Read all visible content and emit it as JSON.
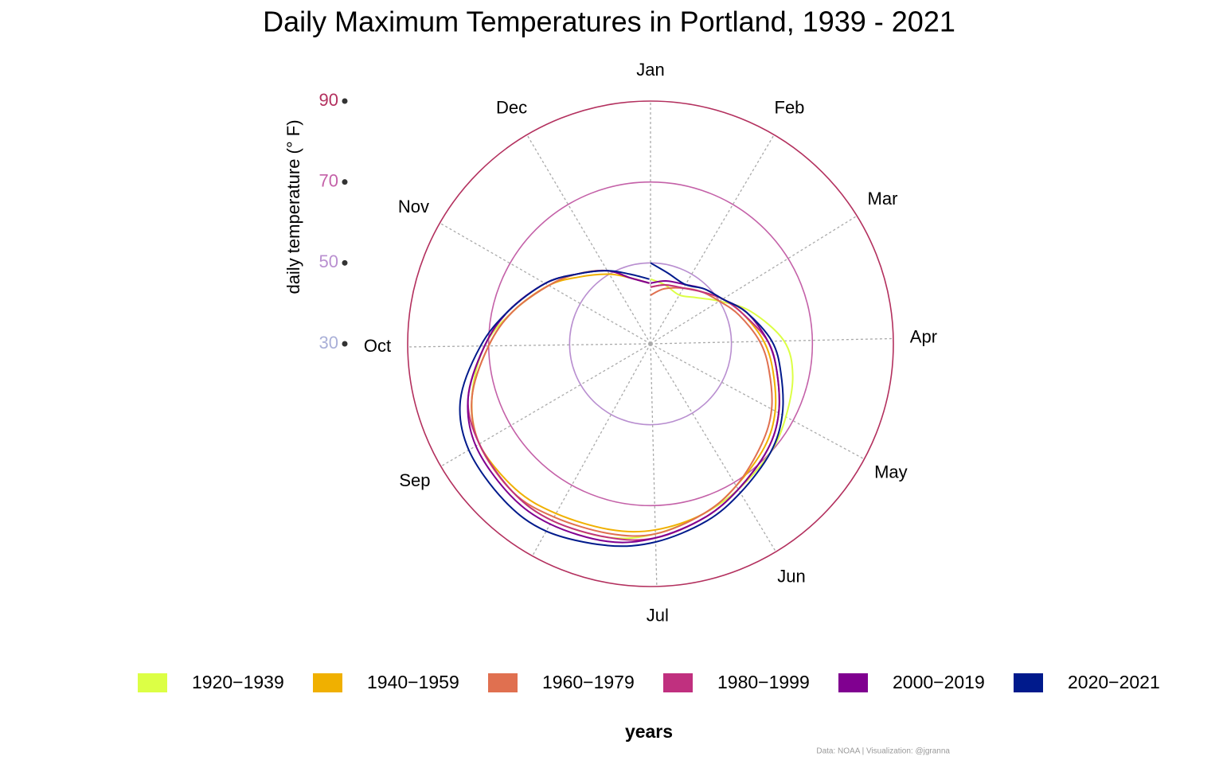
{
  "chart_data": {
    "type": "polar-line",
    "title": "Daily Maximum Temperatures in Portland, 1939 - 2021",
    "y_label": "daily temperature (° F)",
    "legend_title": "years",
    "caption": "Data: NOAA | Visualization: @jgranna",
    "xlim": [
      1,
      366
    ],
    "xticks": [
      {
        "value": 1,
        "label": "Jan"
      },
      {
        "value": 32,
        "label": "Feb"
      },
      {
        "value": 60,
        "label": "Mar"
      },
      {
        "value": 91,
        "label": "Apr"
      },
      {
        "value": 121,
        "label": "May"
      },
      {
        "value": 152,
        "label": "Jun"
      },
      {
        "value": 182,
        "label": "Jul"
      },
      {
        "value": 213,
        "label": null
      },
      {
        "value": 244,
        "label": "Sep"
      },
      {
        "value": 274,
        "label": "Oct"
      },
      {
        "value": 305,
        "label": "Nov"
      },
      {
        "value": 335,
        "label": "Dec"
      }
    ],
    "ylim": [
      30,
      90
    ],
    "yticks": [
      30,
      50,
      70,
      90
    ],
    "ytick_colors": [
      "#aab0d8",
      "#b98fd0",
      "#c461a8",
      "#b3305e"
    ],
    "grid": true,
    "legend": "bottom",
    "x": [
      1,
      15,
      32,
      46,
      60,
      74,
      91,
      105,
      121,
      135,
      152,
      166,
      182,
      196,
      213,
      227,
      244,
      258,
      274,
      288,
      305,
      319,
      335,
      349,
      365
    ],
    "series": [
      {
        "name": "1920−1939",
        "color": "#dcff45",
        "values": [
          46,
          45,
          44,
          46,
          50,
          56,
          63,
          66,
          68,
          70,
          72,
          74,
          77,
          79,
          80,
          80,
          79,
          76,
          71,
          65,
          59,
          55,
          51,
          47,
          45
        ]
      },
      {
        "name": "1940−1959",
        "color": "#f0b000",
        "values": [
          44,
          45,
          46,
          48,
          51,
          54,
          58,
          61,
          65,
          68,
          71,
          74,
          76,
          77,
          78,
          79,
          79,
          76,
          70,
          65,
          59,
          54,
          50,
          47,
          45
        ]
      },
      {
        "name": "1960−1979",
        "color": "#e07050",
        "values": [
          42,
          44,
          46,
          48,
          50,
          53,
          57,
          60,
          64,
          67,
          71,
          74,
          77,
          78,
          79,
          80,
          79,
          76,
          70,
          65,
          59,
          55,
          51,
          47,
          45
        ]
      },
      {
        "name": "1980−1999",
        "color": "#c0307f",
        "values": [
          44,
          45,
          46,
          48,
          51,
          54,
          59,
          62,
          66,
          69,
          72,
          75,
          78,
          79,
          80,
          80,
          79,
          77,
          71,
          66,
          60,
          55,
          51,
          47,
          45
        ]
      },
      {
        "name": "2000−2019",
        "color": "#800090",
        "values": [
          45,
          46,
          47,
          49,
          51,
          55,
          59,
          62,
          66,
          69,
          72,
          75,
          78,
          80,
          81,
          81,
          80,
          77,
          71,
          66,
          60,
          55,
          51,
          47,
          45
        ]
      },
      {
        "name": "2020−2021",
        "color": "#001a8c",
        "values": [
          50,
          48,
          47,
          49,
          51,
          55,
          60,
          63,
          67,
          70,
          73,
          76,
          79,
          81,
          83,
          83,
          82,
          79,
          72,
          66,
          60,
          55,
          51,
          48,
          46
        ]
      }
    ]
  }
}
